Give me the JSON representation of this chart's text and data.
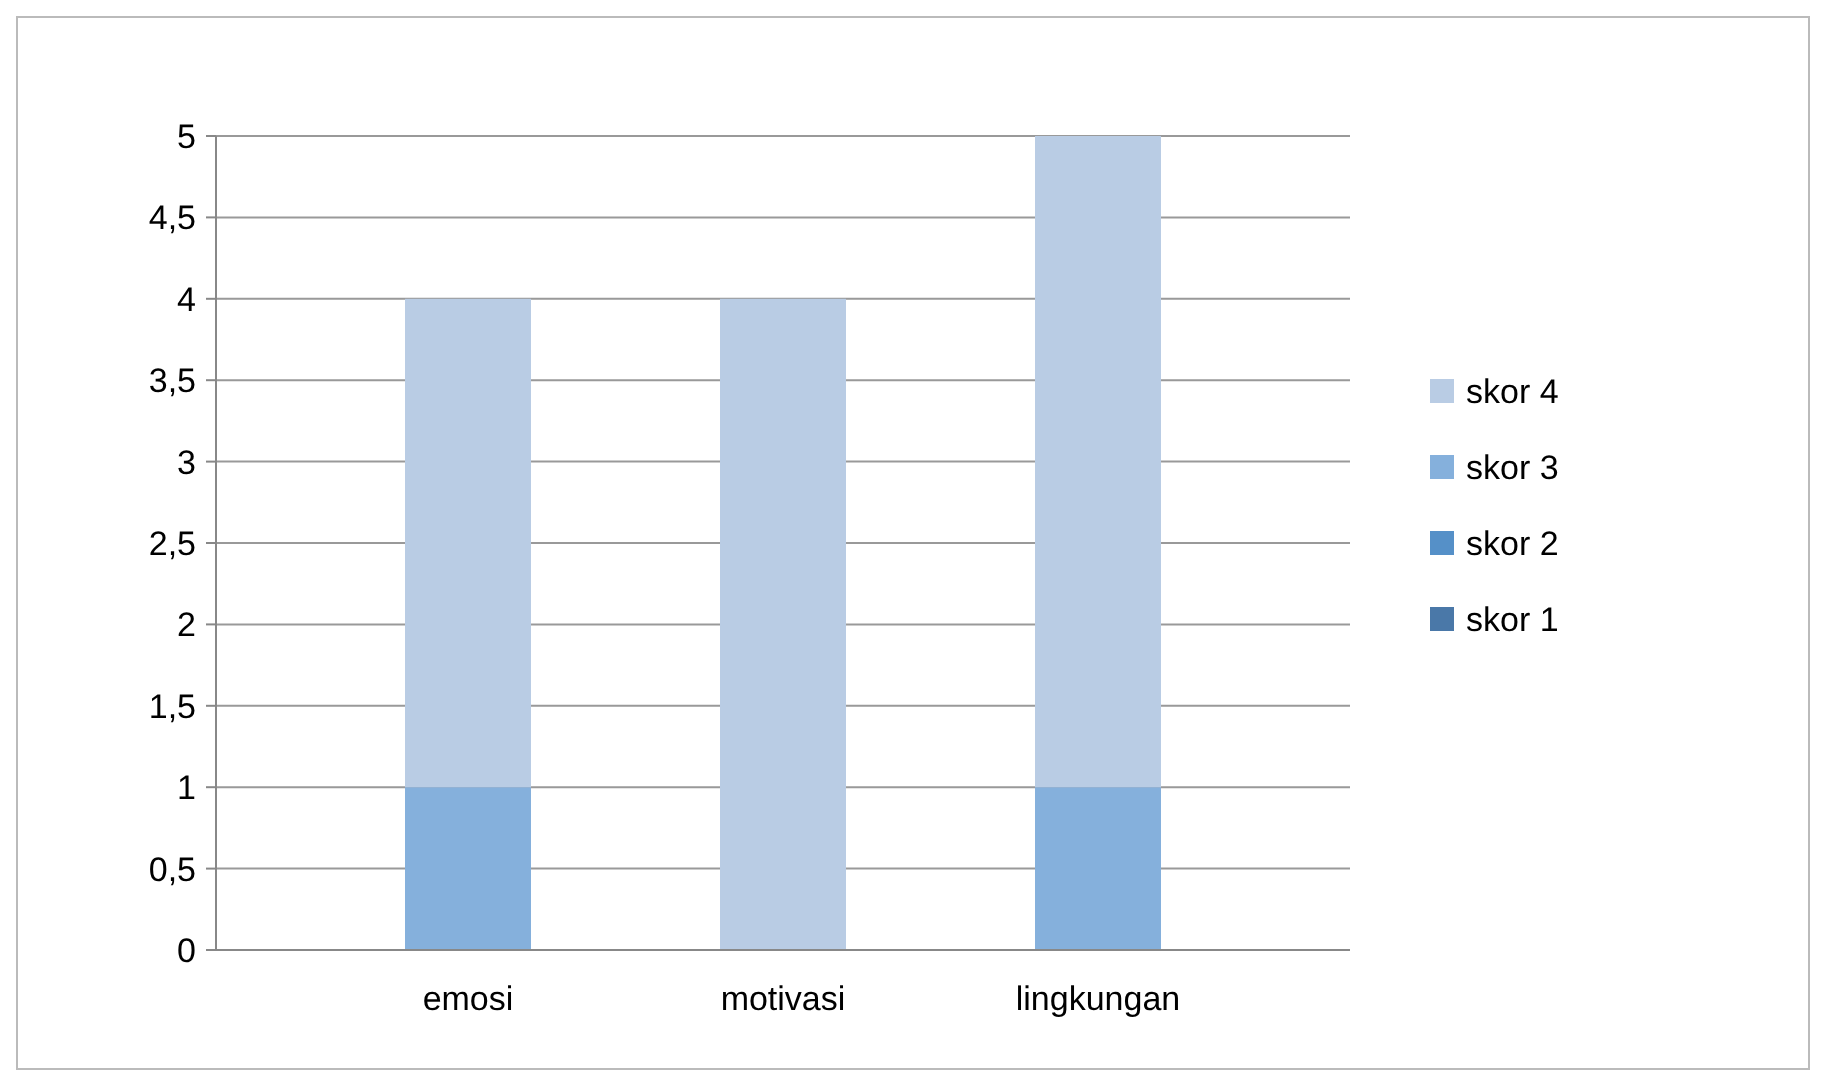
{
  "chart_data": {
    "type": "bar",
    "stacked": true,
    "categories": [
      "emosi",
      "motivasi",
      "lingkungan"
    ],
    "series": [
      {
        "name": "skor 1",
        "color": "#4a78a8",
        "values": [
          0,
          0,
          0
        ]
      },
      {
        "name": "skor 2",
        "color": "#5590c8",
        "values": [
          0,
          0,
          0
        ]
      },
      {
        "name": "skor 3",
        "color": "#85b0dc",
        "values": [
          1,
          0,
          1
        ]
      },
      {
        "name": "skor 4",
        "color": "#b9cce4",
        "values": [
          3,
          4,
          4
        ]
      }
    ],
    "ylim": [
      0,
      5
    ],
    "yticks": [
      0,
      {
        "value": 0.5,
        "label": "0,5"
      },
      1,
      {
        "value": 1.5,
        "label": "1,5"
      },
      2,
      {
        "value": 2.5,
        "label": "2,5"
      },
      3,
      {
        "value": 3.5,
        "label": "3,5"
      },
      4,
      {
        "value": 4.5,
        "label": "4,5"
      },
      5
    ],
    "grid": "y",
    "legend": "right"
  }
}
